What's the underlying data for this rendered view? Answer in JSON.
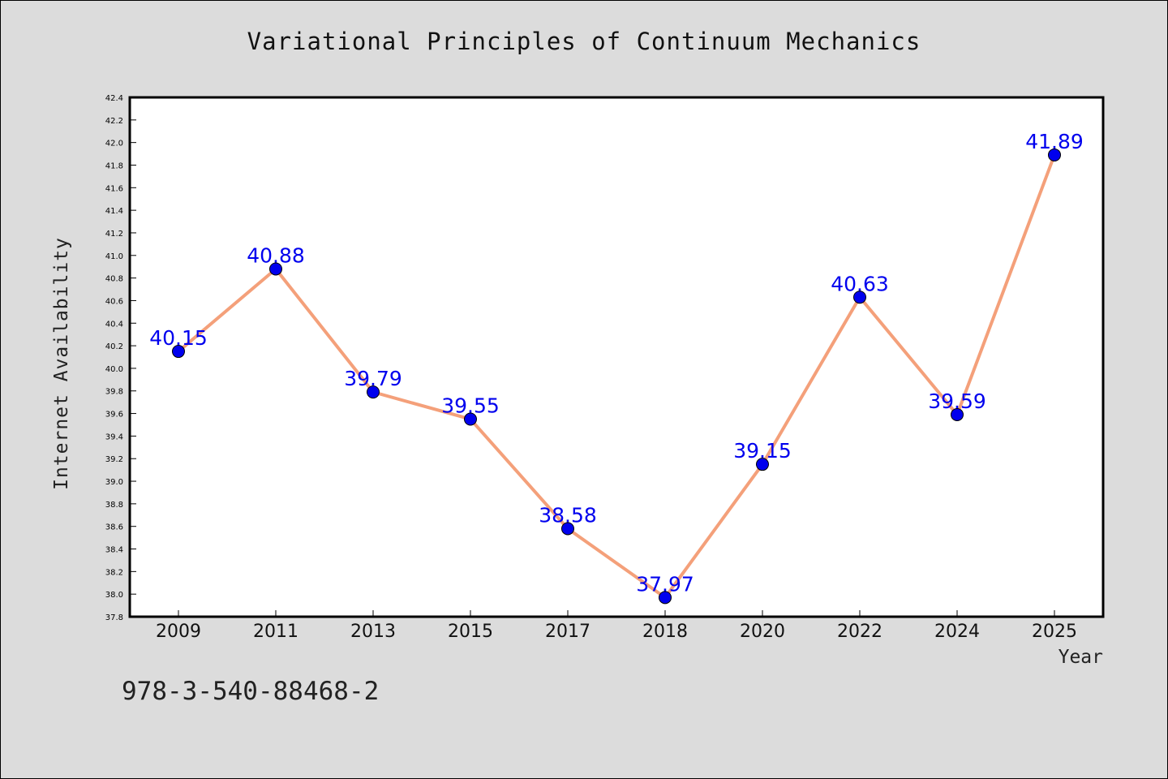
{
  "chart_data": {
    "type": "line",
    "title": "Variational Principles of Continuum Mechanics",
    "xlabel": "Year",
    "ylabel": "Internet Availability",
    "categories": [
      "2009",
      "2011",
      "2013",
      "2015",
      "2017",
      "2018",
      "2020",
      "2022",
      "2024",
      "2025"
    ],
    "series": [
      {
        "values": [
          40.15,
          40.88,
          39.79,
          39.55,
          38.58,
          37.97,
          39.15,
          40.63,
          39.59,
          41.89
        ],
        "line_color": "#f4a07a",
        "marker_color": "#0000ee"
      }
    ],
    "data_labels": [
      "40.15",
      "40.88",
      "39.79",
      "39.55",
      "38.58",
      "37.97",
      "39.15",
      "40.63",
      "39.59",
      "41.89"
    ],
    "ylim": [
      37.8,
      42.4
    ],
    "yticks": [
      "37.8",
      "38.0",
      "38.2",
      "38.4",
      "38.6",
      "38.8",
      "39.0",
      "39.2",
      "39.4",
      "39.6",
      "39.8",
      "40.0",
      "40.2",
      "40.4",
      "40.6",
      "40.8",
      "41.0",
      "41.2",
      "41.4",
      "41.6",
      "41.8",
      "42.0",
      "42.2",
      "42.4"
    ],
    "grid": false,
    "label_color": "#0000ee"
  },
  "footer": {
    "isbn": "978-3-540-88468-2"
  }
}
